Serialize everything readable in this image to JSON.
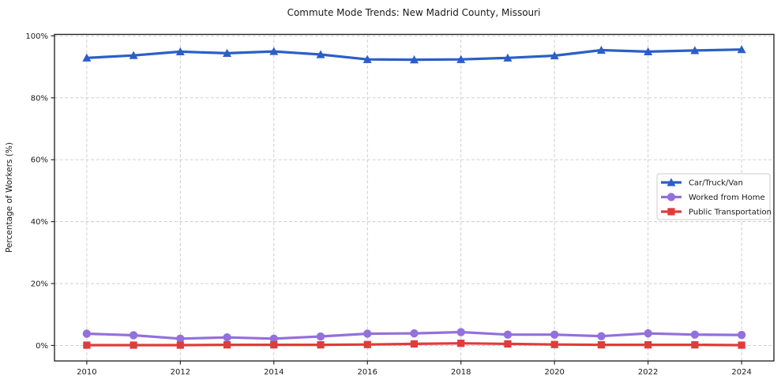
{
  "chart_data": {
    "type": "line",
    "title": "Commute Mode Trends: New Madrid County, Missouri",
    "xlabel": "",
    "ylabel": "Percentage of Workers (%)",
    "x": [
      2010,
      2011,
      2012,
      2013,
      2014,
      2015,
      2016,
      2017,
      2018,
      2019,
      2020,
      2021,
      2022,
      2023,
      2024
    ],
    "x_ticks": [
      2010,
      2012,
      2014,
      2016,
      2018,
      2020,
      2022,
      2024
    ],
    "y_ticks": [
      0,
      20,
      40,
      60,
      80,
      100
    ],
    "y_tick_suffix": "%",
    "xlim": [
      2009.31,
      2024.69
    ],
    "ylim": [
      -5,
      100.5
    ],
    "grid": true,
    "grid_style": "dashed",
    "legend_position": "center-right",
    "series": [
      {
        "name": "Car/Truck/Van",
        "color": "#2b5fc7",
        "marker": "triangle",
        "values": [
          92.9,
          93.7,
          94.9,
          94.4,
          95.0,
          94.0,
          92.4,
          92.3,
          92.4,
          92.9,
          93.6,
          95.4,
          94.9,
          95.3,
          95.6
        ]
      },
      {
        "name": "Worked from Home",
        "color": "#9370db",
        "marker": "circle",
        "values": [
          3.8,
          3.3,
          2.2,
          2.6,
          2.2,
          2.9,
          3.8,
          3.9,
          4.3,
          3.5,
          3.5,
          3.0,
          3.9,
          3.5,
          3.4
        ]
      },
      {
        "name": "Public Transportation",
        "color": "#e03c3c",
        "marker": "square",
        "values": [
          0.1,
          0.1,
          0.1,
          0.2,
          0.2,
          0.2,
          0.3,
          0.5,
          0.7,
          0.5,
          0.3,
          0.2,
          0.2,
          0.2,
          0.1
        ]
      }
    ]
  }
}
